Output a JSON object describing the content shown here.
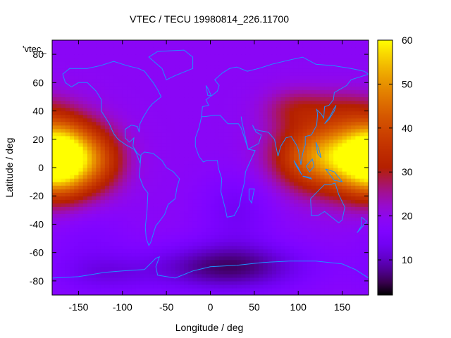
{
  "chart_data": {
    "type": "heatmap",
    "title": "VTEC / TECU 19980814_226.11700",
    "xlabel": "Longitude / deg",
    "ylabel": "Latitude / deg",
    "legend_label": "'vtec_",
    "xlim": [
      -180,
      180
    ],
    "ylim": [
      -90,
      90
    ],
    "xticks": [
      "-150",
      "-100",
      "-50",
      "0",
      "50",
      "100",
      "150"
    ],
    "xtick_values": [
      -150,
      -100,
      -50,
      0,
      50,
      100,
      150
    ],
    "yticks": [
      "-80",
      "-60",
      "-40",
      "-20",
      "0",
      "20",
      "40",
      "60",
      "80"
    ],
    "ytick_values": [
      -80,
      -60,
      -40,
      -20,
      0,
      20,
      40,
      60,
      80
    ],
    "colorbar": {
      "range": [
        2,
        60
      ],
      "ticks": [
        "10",
        "20",
        "30",
        "40",
        "50",
        "60"
      ],
      "tick_values": [
        10,
        20,
        30,
        40,
        50,
        60
      ],
      "palette": "black-purple-red-orange-yellow"
    },
    "background_level": 19,
    "features": [
      {
        "lon": -168,
        "lat": 6,
        "sx": 28,
        "sy": 18,
        "amp": 34
      },
      {
        "lon": -120,
        "lat": 5,
        "sx": 20,
        "sy": 15,
        "amp": 8
      },
      {
        "lon": 160,
        "lat": 8,
        "sx": 45,
        "sy": 18,
        "amp": 30
      },
      {
        "lon": 110,
        "lat": 8,
        "sx": 30,
        "sy": 15,
        "amp": 12
      },
      {
        "lon": 95,
        "lat": 42,
        "sx": 25,
        "sy": 10,
        "amp": 8
      },
      {
        "lon": 150,
        "lat": 42,
        "sx": 30,
        "sy": 10,
        "amp": 6
      },
      {
        "lon": 20,
        "lat": -70,
        "sx": 60,
        "sy": 12,
        "amp": -13
      },
      {
        "lon": 30,
        "lat": -30,
        "sx": 30,
        "sy": 18,
        "amp": -5
      },
      {
        "lon": -120,
        "lat": -75,
        "sx": 40,
        "sy": 10,
        "amp": -5
      },
      {
        "lon": -140,
        "lat": -50,
        "sx": 35,
        "sy": 20,
        "amp": -3
      }
    ],
    "coastline_color": "#1e90ff"
  }
}
